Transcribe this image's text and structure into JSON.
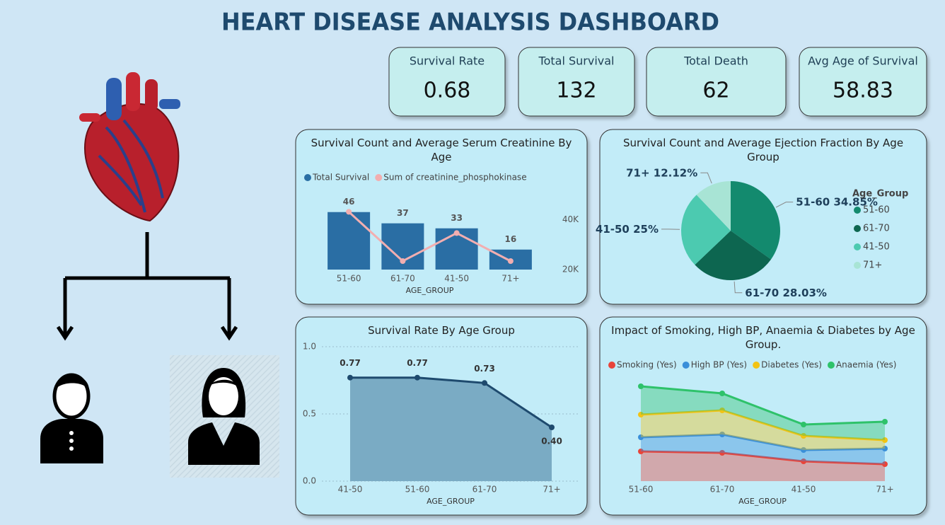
{
  "title": "HEART DISEASE ANALYSIS DASHBOARD",
  "kpis": [
    {
      "label": "Survival Rate",
      "value": 0.68
    },
    {
      "label": "Total Survival",
      "value": 132
    },
    {
      "label": "Total Death",
      "value": 62
    },
    {
      "label": "Avg Age of Survival",
      "value": 58.83
    }
  ],
  "chart_data": [
    {
      "type": "bar",
      "title": "Survival Count and Average Serum Creatinine By Age",
      "x_label": "AGE_GROUP",
      "categories": [
        "51-60",
        "61-70",
        "41-50",
        "71+"
      ],
      "series": [
        {
          "name": "Total Survival",
          "color": "#2a6ea4",
          "values": [
            46,
            37,
            33,
            16
          ]
        },
        {
          "name": "Sum of creatinine_phosphokinase",
          "color": "#f2aeb0",
          "axis": "y2",
          "values": [
            43100,
            23400,
            34600,
            23400
          ]
        }
      ],
      "ylim": [
        0,
        60
      ],
      "y2lim": [
        20000,
        50000
      ],
      "y2ticks": [
        {
          "value": 20000,
          "label": "20K"
        },
        {
          "value": 40000,
          "label": "40K"
        }
      ]
    },
    {
      "type": "pie",
      "title": "Survival Count and Average Ejection Fraction By Age Group",
      "legend_title": "Age_Group",
      "categories": [
        "51-60",
        "61-70",
        "41-50",
        "71+"
      ],
      "values": [
        34.85,
        28.03,
        25,
        12.12
      ],
      "value_labels": [
        "34.85%",
        "28.03%",
        "25%",
        "12.12%"
      ],
      "colors": [
        "#138a6e",
        "#0d6650",
        "#4ccab0",
        "#a8e4d5"
      ],
      "legend": "right"
    },
    {
      "type": "area",
      "title": "Survival Rate By Age Group",
      "x_label": "AGE_GROUP",
      "categories": [
        "41-50",
        "51-60",
        "61-70",
        "71+"
      ],
      "values": [
        0.77,
        0.77,
        0.73,
        0.4
      ],
      "value_labels": [
        "0.77",
        "0.77",
        "0.73",
        "0.40"
      ],
      "color": "#1e4a6e",
      "fill": "#7aabc4",
      "ylim": [
        0,
        1
      ],
      "yticks": [
        {
          "value": 0,
          "label": "0.0"
        },
        {
          "value": 0.5,
          "label": "0.5"
        },
        {
          "value": 1,
          "label": "1.0"
        }
      ],
      "grid": true
    },
    {
      "type": "stacked_area",
      "title": "Impact of Smoking, High BP, Anaemia & Diabetes by Age Group.",
      "x_label": "AGE_GROUP",
      "categories": [
        "51-60",
        "61-70",
        "41-50",
        "71+"
      ],
      "series": [
        {
          "name": "Smoking (Yes)",
          "color": "#e8443a",
          "values": [
            21,
            20,
            14,
            12
          ]
        },
        {
          "name": "High BP (Yes)",
          "color": "#3a8fd9",
          "values": [
            10,
            13,
            8,
            11
          ]
        },
        {
          "name": "Diabetes (Yes)",
          "color": "#f2c314",
          "values": [
            16,
            17,
            10,
            6
          ]
        },
        {
          "name": "Anaemia (Yes)",
          "color": "#2ec26a",
          "values": [
            20,
            12,
            8,
            13
          ]
        }
      ],
      "ylim": [
        0,
        75
      ]
    }
  ]
}
